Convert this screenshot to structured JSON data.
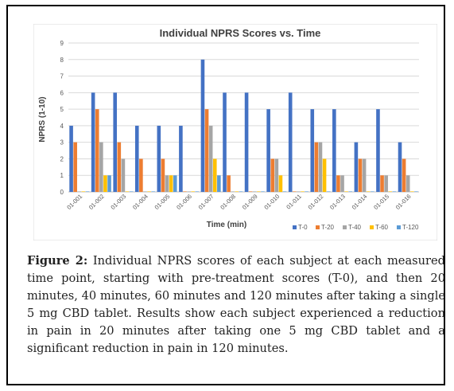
{
  "chart_data": {
    "type": "bar",
    "title": "Individual NPRS Scores vs. Time",
    "xlabel": "Time (min)",
    "ylabel": "NPRS (1-10)",
    "ylim": [
      0,
      9
    ],
    "yticks": [
      "0",
      "1",
      "2",
      "3",
      "4",
      "5",
      "6",
      "7",
      "8",
      "9"
    ],
    "grid": true,
    "legend_position": "bottom-right",
    "categories": [
      "01-001",
      "01-002",
      "01-003",
      "01-004",
      "01-005",
      "01-006",
      "01-007",
      "01-008",
      "01-009",
      "01-010",
      "01-011",
      "01-012",
      "01-013",
      "01-014",
      "01-015",
      "01-016"
    ],
    "series": [
      {
        "name": "T-0",
        "color": "#4472c4",
        "values": [
          4,
          6,
          6,
          4,
          4,
          4,
          8,
          6,
          6,
          5,
          6,
          5,
          5,
          3,
          5,
          3
        ]
      },
      {
        "name": "T-20",
        "color": "#ed7d31",
        "values": [
          3,
          5,
          3,
          2,
          2,
          0,
          5,
          1,
          0,
          2,
          0,
          3,
          1,
          2,
          1,
          2
        ]
      },
      {
        "name": "T-40",
        "color": "#a5a5a5",
        "values": [
          0,
          3,
          2,
          0,
          1,
          0,
          4,
          0,
          0,
          2,
          0,
          3,
          1,
          2,
          1,
          1
        ]
      },
      {
        "name": "T-60",
        "color": "#ffc000",
        "values": [
          0,
          1,
          0,
          0,
          1,
          0,
          2,
          0,
          0,
          1,
          0,
          2,
          0,
          0,
          0,
          0
        ]
      },
      {
        "name": "T-120",
        "color": "#5b9bd5",
        "values": [
          0,
          1,
          0,
          0,
          1,
          0,
          1,
          0,
          0,
          0,
          0,
          0,
          0,
          0,
          0,
          0
        ]
      }
    ]
  },
  "caption": {
    "label": "Figure 2:",
    "text": " Individual NPRS scores of each subject at each measured time point, starting with pre-treatment scores (T-0), and then 20 minutes, 40 minutes, 60 minutes and 120 minutes after taking a single 5 mg CBD tablet. Results show each subject experienced a reduction in pain in 20 minutes after taking one 5 mg CBD tablet and a significant reduction in pain in 120 minutes."
  }
}
